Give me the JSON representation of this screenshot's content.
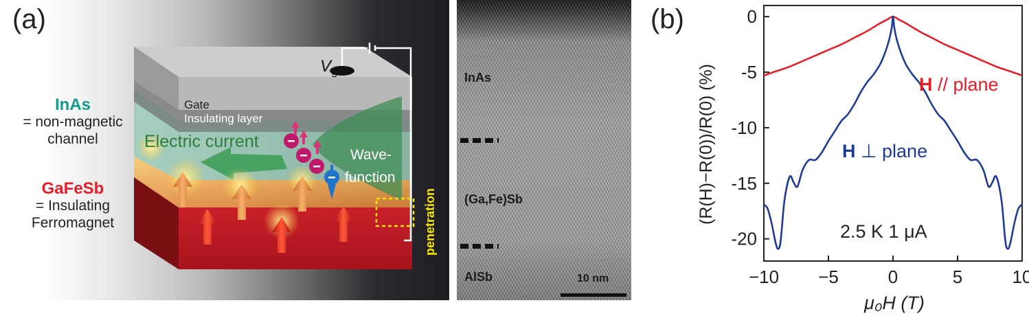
{
  "panel_a": {
    "label": "(a)",
    "left_annotations": {
      "inas_title": "InAs",
      "inas_line1": "= non-magnetic",
      "inas_line2": "channel",
      "gafesb_title": "GaFeSb",
      "gafesb_line1": "= Insulating",
      "gafesb_line2": "Ferromagnet"
    },
    "device": {
      "vg_label": "V",
      "vg_sub": "g",
      "gate_label": "Gate",
      "insulating_label": "Insulating layer",
      "current_label": "Electric current",
      "wave_line1": "Wave-",
      "wave_line2": "function",
      "penetration_label": "penetration"
    },
    "tem": {
      "inas_label": "InAs",
      "gafesb_label": "(Ga,Fe)Sb",
      "alsb_label": "AlSb",
      "scale_label": "10 nm"
    },
    "colors": {
      "inas_teal": "#1a9a8c",
      "gafesb_red": "#e0202a",
      "current_green": "#2e7d3c",
      "penetration_yellow": "#f5e600"
    }
  },
  "panel_b": {
    "label": "(b)",
    "annotation": "2.5 K 1 μA",
    "label_parallel_bold": "H",
    "label_parallel_rest": " // plane",
    "label_perp_bold": "H",
    "label_perp_rest": " ⊥ plane",
    "chart_data": {
      "type": "line",
      "xlabel": "μ₀H (T)",
      "ylabel": "(R(H)−R(0))/R(0) (%)",
      "xlim": [
        -10,
        10
      ],
      "ylim": [
        -22,
        1
      ],
      "xticks": [
        -10,
        -5,
        0,
        5,
        10
      ],
      "xtick_labels": [
        "−10",
        "−5",
        "0",
        "5",
        "10"
      ],
      "yticks": [
        0,
        -5,
        -10,
        -15,
        -20
      ],
      "ytick_labels": [
        "0",
        "-5",
        "-10",
        "-15",
        "-20"
      ],
      "series": [
        {
          "name": "H // plane",
          "color": "#e0202a",
          "x": [
            -10,
            -9,
            -8,
            -7,
            -6,
            -5,
            -4,
            -3,
            -2,
            -1,
            -0.5,
            0,
            0.5,
            1,
            2,
            3,
            4,
            5,
            6,
            7,
            8,
            9,
            10
          ],
          "y": [
            -5.3,
            -4.9,
            -4.5,
            -4.0,
            -3.5,
            -3.0,
            -2.5,
            -1.9,
            -1.3,
            -0.6,
            -0.3,
            0,
            -0.3,
            -0.6,
            -1.3,
            -1.9,
            -2.5,
            -3.0,
            -3.5,
            -4.0,
            -4.5,
            -4.9,
            -5.3
          ]
        },
        {
          "name": "H ⊥ plane",
          "color": "#1f3a93",
          "x": [
            -10,
            -9.7,
            -9.4,
            -9.1,
            -8.9,
            -8.7,
            -8.4,
            -8.0,
            -7.7,
            -7.4,
            -7.0,
            -6.5,
            -6.0,
            -5.5,
            -5.0,
            -4.5,
            -4.0,
            -3.5,
            -3.0,
            -2.5,
            -2.0,
            -1.5,
            -1.0,
            -0.6,
            -0.3,
            -0.1,
            0,
            0.1,
            0.3,
            0.6,
            1.0,
            1.5,
            2.0,
            2.5,
            3.0,
            3.5,
            4.0,
            4.5,
            5.0,
            5.5,
            6.0,
            6.5,
            7.0,
            7.4,
            7.7,
            8.0,
            8.4,
            8.7,
            8.9,
            9.1,
            9.4,
            9.7,
            10
          ],
          "y": [
            -16.9,
            -17.3,
            -18.6,
            -20.3,
            -20.9,
            -20.2,
            -16.5,
            -14.4,
            -14.9,
            -15.3,
            -13.8,
            -12.9,
            -12.9,
            -12.2,
            -11.2,
            -10.3,
            -9.4,
            -8.8,
            -7.9,
            -6.8,
            -5.9,
            -5.2,
            -4.3,
            -3.2,
            -2.1,
            -1.0,
            0,
            -1.0,
            -2.1,
            -3.2,
            -4.3,
            -5.2,
            -5.9,
            -6.8,
            -7.9,
            -8.8,
            -9.4,
            -10.3,
            -11.2,
            -12.2,
            -12.9,
            -12.9,
            -13.8,
            -15.3,
            -14.9,
            -14.4,
            -16.5,
            -20.2,
            -20.9,
            -20.3,
            -18.6,
            -17.3,
            -16.9
          ]
        }
      ]
    }
  }
}
